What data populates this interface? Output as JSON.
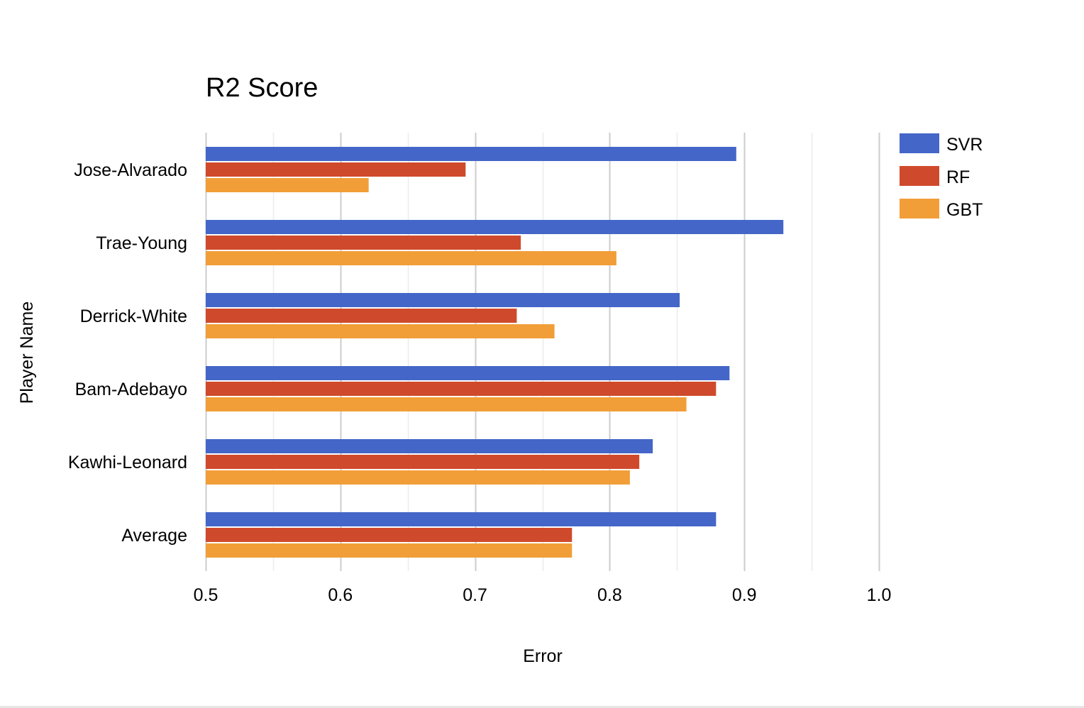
{
  "chart_data": {
    "type": "bar",
    "orientation": "horizontal",
    "title": "R2 Score",
    "xlabel": "Error",
    "ylabel": "Player Name",
    "xlim": [
      0.5,
      1.0
    ],
    "x_ticks": [
      "0.5",
      "0.6",
      "0.7",
      "0.8",
      "0.9",
      "1.0"
    ],
    "x_tick_values": [
      0.5,
      0.6,
      0.7,
      0.8,
      0.9,
      1.0
    ],
    "minor_grid": true,
    "legend_position": "right",
    "categories": [
      "Jose-Alvarado",
      "Trae-Young",
      "Derrick-White",
      "Bam-Adebayo",
      "Kawhi-Leonard",
      "Average"
    ],
    "series": [
      {
        "name": "SVR",
        "color": "#4466c8",
        "values": [
          0.894,
          0.929,
          0.852,
          0.889,
          0.832,
          0.879
        ]
      },
      {
        "name": "RF",
        "color": "#cf4a2c",
        "values": [
          0.693,
          0.734,
          0.731,
          0.879,
          0.822,
          0.772
        ]
      },
      {
        "name": "GBT",
        "color": "#f19e38",
        "values": [
          0.621,
          0.805,
          0.759,
          0.857,
          0.815,
          0.772
        ]
      }
    ]
  }
}
